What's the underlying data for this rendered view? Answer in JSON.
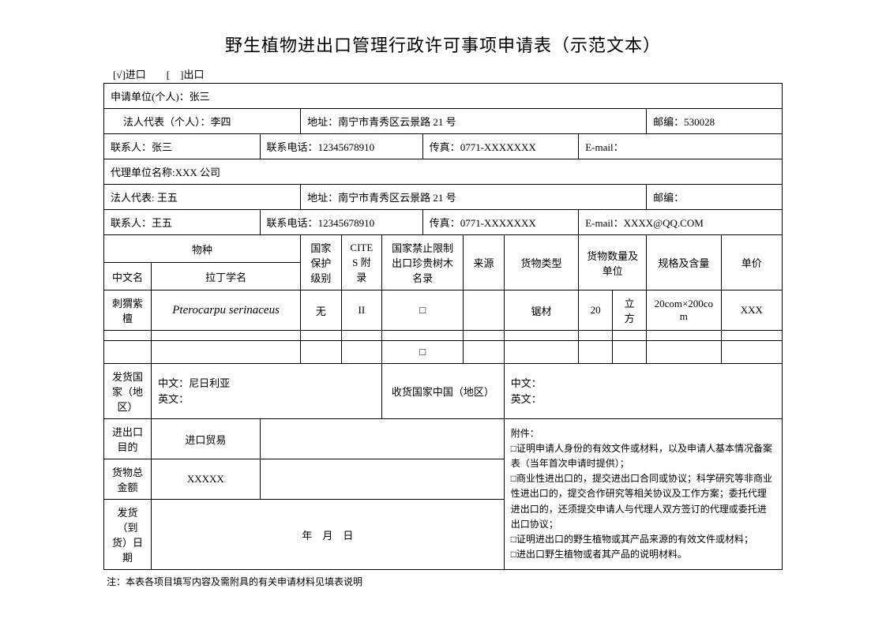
{
  "title": "野生植物进出口管理行政许可事项申请表（示范文本）",
  "checkboxes": "[√]进口　　[　]出口",
  "applicant_unit_label": "申请单位(个人)：",
  "applicant_unit": "张三",
  "legal_rep_label": "法人代表（个人）：",
  "legal_rep": "李四",
  "address_label": "地址：",
  "address": "南宁市青秀区云景路 21 号",
  "postcode_label": "邮编：",
  "postcode": "530028",
  "contact_label": "联系人：",
  "contact": "张三",
  "phone_label": "联系电话：",
  "phone": "12345678910",
  "fax_label": "传真：",
  "fax": "0771-XXXXXXX",
  "email_label": "E-mail：",
  "email": "",
  "agent_unit_label": "代理单位名称:",
  "agent_unit": "XXX 公司",
  "agent_legal_label": "法人代表:",
  "agent_legal": " 王五",
  "agent_address_label": "地址：",
  "agent_address": "南宁市青秀区云景路 21 号",
  "agent_postcode_label": "邮编：",
  "agent_postcode": "",
  "agent_contact_label": "联系人：",
  "agent_contact": "王五",
  "agent_phone_label": "联系电话：",
  "agent_phone": "12345678910",
  "agent_fax_label": "传真：",
  "agent_fax": "0771-XXXXXXX",
  "agent_email_label": "E-mail：",
  "agent_email": "XXXX@QQ.COM",
  "headers": {
    "species": "物种",
    "cn_name": "中文名",
    "latin_name": "拉丁学名",
    "national_protect": "国家保护级别",
    "cites": "CITES 附录",
    "restrict": "国家禁止限制出口珍贵树木名录",
    "source": "来源",
    "cargo_type": "货物类型",
    "qty": "货物数量及单位",
    "spec": "规格及含量",
    "unit_price": "单价"
  },
  "row1": {
    "cn_name": "刺猬紫檀",
    "latin_name": "Pterocarpu serinaceus",
    "national_protect": "无",
    "cites": "II",
    "restrict": "□",
    "source": "",
    "cargo_type": "锯材",
    "qty_num": "20",
    "qty_unit": "立方",
    "spec": "20com×200com",
    "unit_price": "XXX"
  },
  "row3_restrict": "□",
  "ship_country_label": "发货国家（地区）",
  "ship_country_cn": "中文：尼日利亚",
  "ship_country_en": "英文：",
  "recv_country_label": "收货国家中国（地区）",
  "recv_country_cn": "中文：",
  "recv_country_en": "英文：",
  "purpose_label": "进出口目的",
  "purpose": "进口贸易",
  "total_label": "货物总金额",
  "total": "XXXXX",
  "ship_date_label": "发货（到货）日期",
  "ship_date": "年　月　日",
  "attachments_title": "附件：",
  "attachments": "□证明申请人身份的有效文件或材料，以及申请人基本情况备案表（当年首次申请时提供）；\n□商业性进出口的，提交进出口合同或协议；科学研究等非商业性进出口的，提交合作研究等相关协议及工作方案；委托代理进出口的，还须提交申请人与代理人双方签订的代理或委托进出口协议；\n□证明进出口的野生植物或其产品来源的有效文件或材料；\n□进出口野生植物或者其产品的说明材料。",
  "footnote": "注：本表各项目填写内容及需附具的有关申请材料见填表说明"
}
